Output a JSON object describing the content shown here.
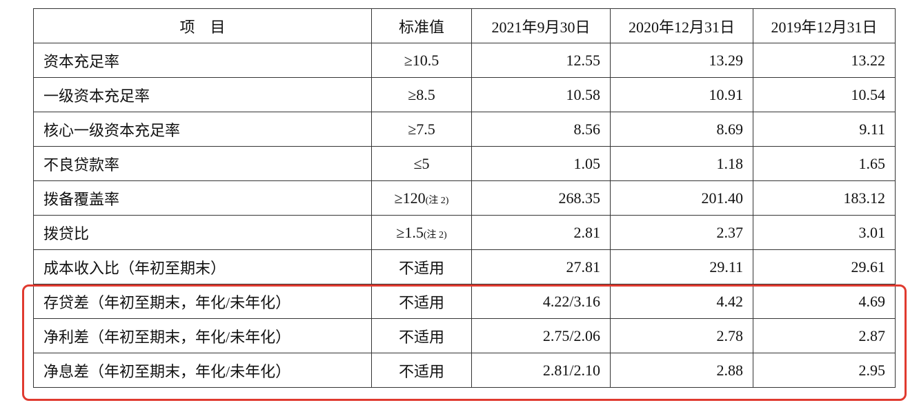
{
  "table": {
    "header": [
      "项　目",
      "标准值",
      "2021年9月30日",
      "2020年12月31日",
      "2019年12月31日"
    ],
    "rows": [
      {
        "item": "资本充足率",
        "standard": "≥10.5",
        "values": [
          "12.55",
          "13.29",
          "13.22"
        ]
      },
      {
        "item": "一级资本充足率",
        "standard": "≥8.5",
        "values": [
          "10.58",
          "10.91",
          "10.54"
        ]
      },
      {
        "item": "核心一级资本充足率",
        "standard": "≥7.5",
        "values": [
          "8.56",
          "8.69",
          "9.11"
        ]
      },
      {
        "item": "不良贷款率",
        "standard": "≤5",
        "values": [
          "1.05",
          "1.18",
          "1.65"
        ]
      },
      {
        "item": "拨备覆盖率",
        "standard": "≥120",
        "note": "(注 2)",
        "values": [
          "268.35",
          "201.40",
          "183.12"
        ]
      },
      {
        "item": "拨贷比",
        "standard": "≥1.5",
        "note": "(注 2)",
        "values": [
          "2.81",
          "2.37",
          "3.01"
        ]
      },
      {
        "item": "成本收入比（年初至期末）",
        "standard": "不适用",
        "values": [
          "27.81",
          "29.11",
          "29.61"
        ]
      },
      {
        "item": "存贷差（年初至期末，年化/未年化）",
        "standard": "不适用",
        "values": [
          "4.22/3.16",
          "4.42",
          "4.69"
        ]
      },
      {
        "item": "净利差（年初至期末，年化/未年化）",
        "standard": "不适用",
        "values": [
          "2.75/2.06",
          "2.78",
          "2.87"
        ]
      },
      {
        "item": "净息差（年初至期末，年化/未年化）",
        "standard": "不适用",
        "values": [
          "2.81/2.10",
          "2.88",
          "2.95"
        ]
      }
    ]
  }
}
